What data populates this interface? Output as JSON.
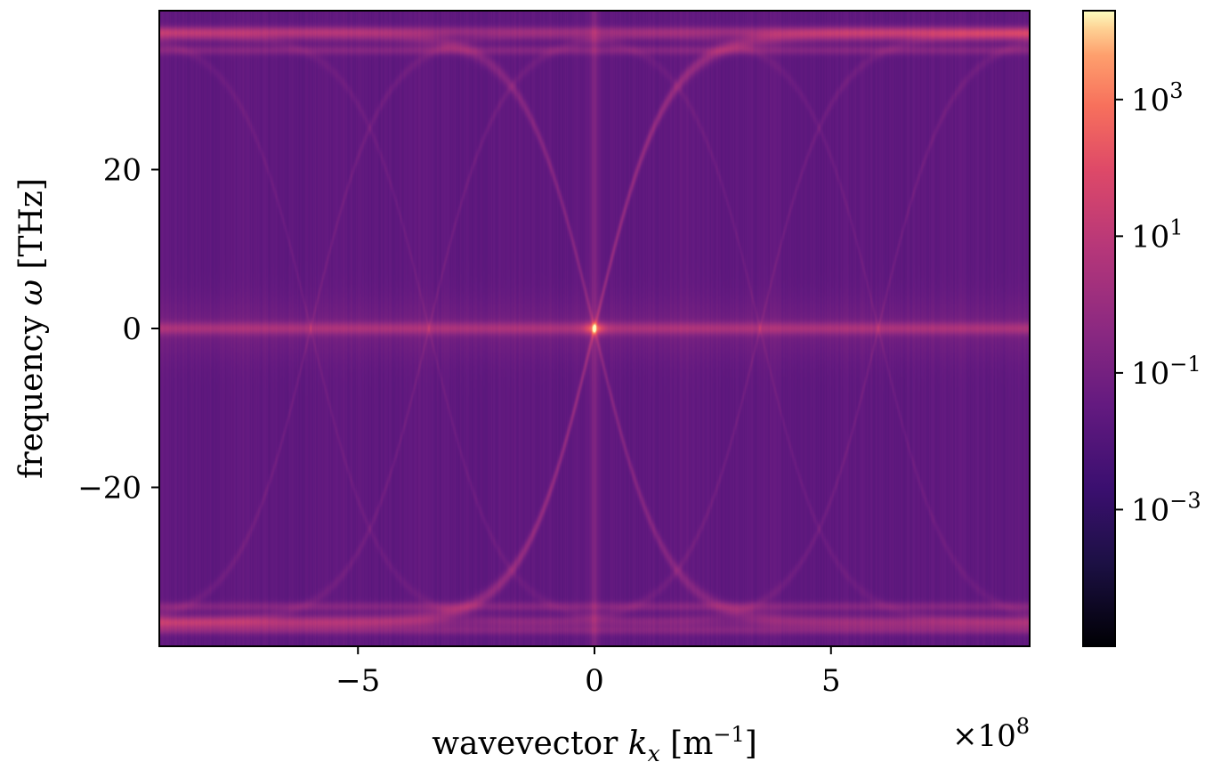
{
  "chart_data": {
    "type": "heatmap",
    "title": "",
    "xlabel": {
      "prefix": "wavevector ",
      "symbol": "k",
      "subscript": "x",
      "unit_open": " [m",
      "unit_exp": "−1",
      "unit_close": "]"
    },
    "ylabel": {
      "prefix": "frequency ",
      "symbol": "ω",
      "unit": " [THz]"
    },
    "x_offset_text": {
      "prefix": "×10",
      "exp": "8"
    },
    "xlim": [
      -9.2,
      9.2
    ],
    "ylim": [
      -40,
      40
    ],
    "x_unit_scale": 100000000.0,
    "x_ticks": [
      {
        "value": -5,
        "label": "−5"
      },
      {
        "value": 0,
        "label": "0"
      },
      {
        "value": 5,
        "label": "5"
      }
    ],
    "y_ticks": [
      {
        "value": 20,
        "label": "20"
      },
      {
        "value": 0,
        "label": "0"
      },
      {
        "value": -20,
        "label": "−20"
      }
    ],
    "colormap": "magma",
    "colorbar": {
      "scale": "log",
      "range_log10": [
        -5,
        4.3
      ],
      "ticks": [
        {
          "exp": -3,
          "base": "10",
          "label": "−3"
        },
        {
          "exp": -1,
          "base": "10",
          "label": "−1"
        },
        {
          "exp": 1,
          "base": "10",
          "label": "1"
        },
        {
          "exp": 3,
          "base": "10",
          "label": "3"
        }
      ]
    },
    "features": {
      "background_log10": -1.5,
      "dispersion_branches": [
        {
          "name": "",
          "k_at_omega": "symmetric sigmoid",
          "omega_max": 37,
          "kc": 3.3,
          "width": 1.5,
          "sign": 1
        },
        {
          "name": "",
          "k_at_omega": "symmetric sigmoid",
          "omega_max": 37,
          "kc": 3.3,
          "width": 1.5,
          "sign": -1
        }
      ],
      "zero_frequency_line_omega": 0,
      "zero_wavevector_line_k": 0,
      "flat_bands_omega": [
        35,
        37.5,
        -35,
        -38
      ]
    }
  },
  "colors": {
    "axes_edge": "#000000",
    "background": "#ffffff"
  }
}
